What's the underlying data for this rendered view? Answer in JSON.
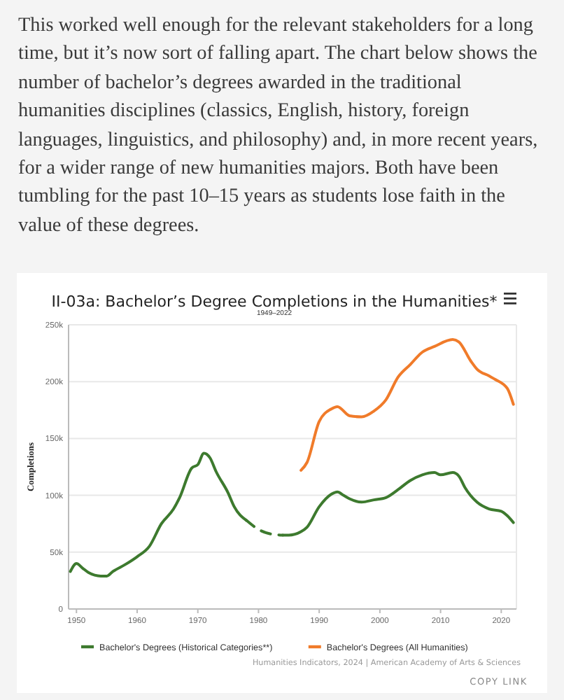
{
  "chart_data": {
    "type": "line",
    "title": "II-03a: Bachelor’s Degree Completions in the Humanities*",
    "subtitle": "1949–2022",
    "ylabel": "Completions",
    "annotations": [
      "This worked well enough for the relevant stakeholders for a long time, but it’s now sort of falling apart. The chart below shows the number of bachelor’s degrees awarded in the traditional humanities disciplines (classics, English, history, foreign languages, linguistics, and philosophy) and, in more recent years, for a wider range of new humanities majors. Both have been tumbling for the past 10–15 years as students lose faith in the value of these degrees.",
      "Humanities Indicators, 2024 | American Academy of Arts & Sciences",
      "COPY LINK"
    ],
    "xlim": [
      1948.7,
      2022.5
    ],
    "xticks": [
      1950,
      1960,
      1970,
      1980,
      1990,
      2000,
      2010,
      2020
    ],
    "ylim": [
      0,
      250000
    ],
    "yticks": [
      {
        "value": 0,
        "label": "0"
      },
      {
        "value": 50000,
        "label": "50k"
      },
      {
        "value": 100000,
        "label": "100k"
      },
      {
        "value": 150000,
        "label": "150k"
      },
      {
        "value": 200000,
        "label": "200k"
      },
      {
        "value": 250000,
        "label": "250k"
      }
    ],
    "grid": "y",
    "legend": "bottom",
    "marker": "none",
    "series": [
      {
        "name": "Bachelor's Degrees (Historical Categories**)",
        "color": "#3d7a2e",
        "x": [
          1949,
          1950,
          1951,
          1952,
          1954,
          1955,
          1956,
          1958,
          1960,
          1962,
          1964,
          1966,
          1967,
          1969,
          1970,
          1971,
          1972,
          1973,
          1975,
          1976,
          1978,
          1979,
          1980,
          1981,
          1982,
          1983,
          1984,
          1985,
          1987,
          1988,
          1990,
          1992,
          1993,
          1994,
          1995,
          1997,
          1999,
          2001,
          2003,
          2005,
          2007,
          2009,
          2010,
          2012,
          2013,
          2014,
          2016,
          2018,
          2020,
          2021,
          2022
        ],
        "values": [
          33000,
          40000,
          36000,
          32000,
          29000,
          29000,
          33000,
          39000,
          46000,
          55000,
          75000,
          88000,
          98000,
          124000,
          127000,
          137000,
          133000,
          121000,
          102000,
          90000,
          78000,
          null,
          null,
          null,
          null,
          null,
          65000,
          65000,
          68000,
          72000,
          90000,
          101000,
          103000,
          100000,
          97000,
          94000,
          96000,
          98000,
          105000,
          113000,
          118000,
          120000,
          118000,
          120000,
          117000,
          107000,
          94000,
          88000,
          86000,
          82000,
          76000
        ]
      },
      {
        "color": "#3d7a2e",
        "line_style": "dashed",
        "x": [
          1978,
          1980,
          1982,
          1984
        ],
        "values": [
          78000,
          70000,
          66000,
          65000
        ]
      },
      {
        "name": "Bachelor's Degrees (All Humanities)",
        "color": "#f07b2a",
        "x": [
          1987,
          1988,
          1990,
          1992,
          1993,
          1995,
          1997,
          1999,
          2001,
          2003,
          2005,
          2007,
          2009,
          2012,
          2013,
          2015,
          2016,
          2018,
          2019,
          2021,
          2022
        ],
        "values": [
          122000,
          129000,
          165000,
          176000,
          178000,
          170000,
          169000,
          174000,
          184000,
          204000,
          215000,
          226000,
          231000,
          237000,
          235000,
          218000,
          211000,
          205000,
          202000,
          194000,
          180000
        ]
      }
    ]
  }
}
